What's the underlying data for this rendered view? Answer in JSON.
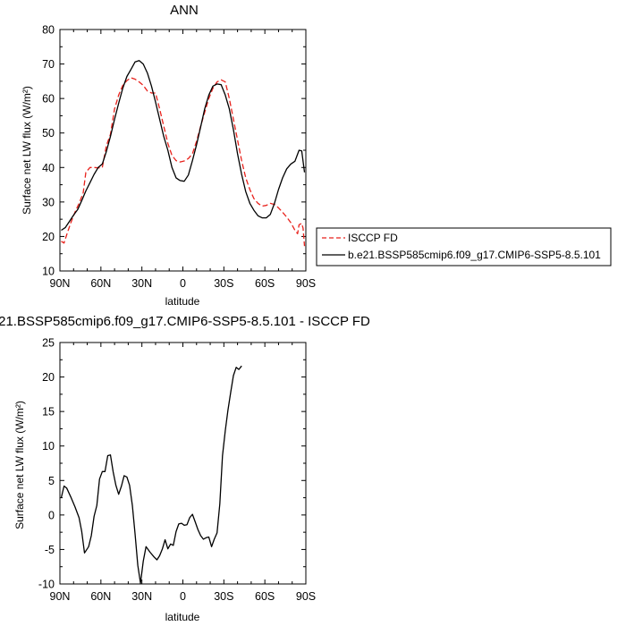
{
  "chart_data": [
    {
      "type": "line",
      "title": "ANN",
      "xlabel": "latitude",
      "ylabel": "Surface net LW flux (W/m²)",
      "xlim": [
        90,
        -90
      ],
      "ylim": [
        10,
        80
      ],
      "x_ticks": [
        90,
        60,
        30,
        0,
        -30,
        -60,
        -90
      ],
      "x_tick_labels": [
        "90N",
        "60N",
        "30N",
        "0",
        "30S",
        "60S",
        "90S"
      ],
      "y_ticks": [
        10,
        20,
        30,
        40,
        50,
        60,
        70,
        80
      ],
      "y_tick_labels": [
        "10",
        "20",
        "30",
        "40",
        "50",
        "60",
        "70",
        "80"
      ],
      "legend_position": "right-outside",
      "series": [
        {
          "name": "ISCCP FD",
          "color": "#e8221c",
          "style": "dashed",
          "points": [
            [
              89,
              18.6
            ],
            [
              87,
              18.1
            ],
            [
              85,
              20.5
            ],
            [
              82,
              24
            ],
            [
              79,
              27
            ],
            [
              76,
              29.6
            ],
            [
              73,
              32.6
            ],
            [
              71,
              38.6
            ],
            [
              68,
              40
            ],
            [
              65,
              40
            ],
            [
              62,
              39.9
            ],
            [
              59,
              40
            ],
            [
              56,
              46.3
            ],
            [
              53,
              49.6
            ],
            [
              50,
              57
            ],
            [
              47,
              61
            ],
            [
              44,
              63.8
            ],
            [
              41,
              65.2
            ],
            [
              38,
              66
            ],
            [
              35,
              65.6
            ],
            [
              32,
              64.8
            ],
            [
              29,
              63.8
            ],
            [
              26,
              62.2
            ],
            [
              23,
              61.6
            ],
            [
              20,
              61.6
            ],
            [
              17,
              57
            ],
            [
              14,
              52
            ],
            [
              11,
              47
            ],
            [
              8,
              43.5
            ],
            [
              5,
              42
            ],
            [
              2,
              41.6
            ],
            [
              -1,
              41.9
            ],
            [
              -4,
              42.6
            ],
            [
              -7,
              44
            ],
            [
              -10,
              47.6
            ],
            [
              -13,
              52
            ],
            [
              -16,
              56
            ],
            [
              -19,
              60
            ],
            [
              -22,
              63
            ],
            [
              -25,
              64.8
            ],
            [
              -28,
              65.4
            ],
            [
              -31,
              64.8
            ],
            [
              -34,
              60
            ],
            [
              -37,
              54
            ],
            [
              -40,
              48
            ],
            [
              -43,
              42
            ],
            [
              -46,
              37
            ],
            [
              -49,
              33.6
            ],
            [
              -52,
              31
            ],
            [
              -55,
              29.6
            ],
            [
              -58,
              28.8
            ],
            [
              -61,
              29
            ],
            [
              -64,
              29.6
            ],
            [
              -67,
              29.3
            ],
            [
              -70,
              28.3
            ],
            [
              -73,
              27
            ],
            [
              -76,
              25.6
            ],
            [
              -79,
              24
            ],
            [
              -82,
              21.8
            ],
            [
              -84,
              20.8
            ],
            [
              -85,
              23.4
            ],
            [
              -87,
              23.8
            ],
            [
              -88,
              22.4
            ],
            [
              -89,
              17.2
            ]
          ]
        },
        {
          "name": "b.e21.BSSP585cmip6.f09_g17.CMIP6-SSP5-8.5.101",
          "color": "#000000",
          "style": "solid",
          "points": [
            [
              89,
              21.8
            ],
            [
              86,
              22.6
            ],
            [
              83,
              24.4
            ],
            [
              80,
              26.2
            ],
            [
              77,
              27.8
            ],
            [
              74,
              30.4
            ],
            [
              71,
              33.2
            ],
            [
              68,
              35.6
            ],
            [
              65,
              38
            ],
            [
              62,
              40
            ],
            [
              59,
              41
            ],
            [
              56,
              44.6
            ],
            [
              53,
              49
            ],
            [
              50,
              54
            ],
            [
              47,
              58.6
            ],
            [
              44,
              63
            ],
            [
              41,
              66.4
            ],
            [
              38,
              68.4
            ],
            [
              35,
              70.6
            ],
            [
              32,
              71
            ],
            [
              29,
              70
            ],
            [
              26,
              67.4
            ],
            [
              23,
              63.6
            ],
            [
              20,
              59
            ],
            [
              17,
              54
            ],
            [
              14,
              49
            ],
            [
              11,
              45
            ],
            [
              8,
              40
            ],
            [
              5,
              37
            ],
            [
              2,
              36.2
            ],
            [
              -1,
              36
            ],
            [
              -4,
              37.8
            ],
            [
              -7,
              42
            ],
            [
              -10,
              46.6
            ],
            [
              -13,
              51.8
            ],
            [
              -16,
              57
            ],
            [
              -19,
              61
            ],
            [
              -22,
              63.6
            ],
            [
              -25,
              64.2
            ],
            [
              -28,
              64
            ],
            [
              -31,
              61
            ],
            [
              -34,
              57
            ],
            [
              -37,
              51
            ],
            [
              -40,
              44
            ],
            [
              -43,
              38
            ],
            [
              -46,
              33
            ],
            [
              -49,
              29.6
            ],
            [
              -52,
              27.6
            ],
            [
              -55,
              26
            ],
            [
              -58,
              25.4
            ],
            [
              -61,
              25.4
            ],
            [
              -64,
              26.4
            ],
            [
              -67,
              29.6
            ],
            [
              -70,
              33.6
            ],
            [
              -73,
              37
            ],
            [
              -76,
              39.6
            ],
            [
              -79,
              41
            ],
            [
              -82,
              41.8
            ],
            [
              -85,
              45
            ],
            [
              -87,
              44.8
            ],
            [
              -89,
              38.6
            ]
          ]
        }
      ]
    },
    {
      "type": "line",
      "title": "21.BSSP585cmip6.f09_g17.CMIP6-SSP5-8.5.101 - ISCCP FD",
      "xlabel": "latitude",
      "ylabel": "Surface net LW flux (W/m²)",
      "xlim": [
        90,
        -90
      ],
      "ylim": [
        -10,
        25
      ],
      "x_ticks": [
        90,
        60,
        30,
        0,
        -30,
        -60,
        -90
      ],
      "x_tick_labels": [
        "90N",
        "60N",
        "30N",
        "0",
        "30S",
        "60S",
        "90S"
      ],
      "y_ticks": [
        -10,
        -5,
        0,
        5,
        10,
        15,
        20,
        25
      ],
      "y_tick_labels": [
        "-10",
        "-5",
        "0",
        "5",
        "10",
        "15",
        "20",
        "25"
      ],
      "series": [
        {
          "color": "#000000",
          "style": "solid",
          "points": [
            [
              89,
              2.5
            ],
            [
              87,
              4.2
            ],
            [
              85,
              3.9
            ],
            [
              82,
              2.6
            ],
            [
              79,
              1.2
            ],
            [
              76,
              -0.4
            ],
            [
              74,
              -2.4
            ],
            [
              72,
              -5.5
            ],
            [
              69,
              -4.6
            ],
            [
              67,
              -3.0
            ],
            [
              65,
              -0.2
            ],
            [
              63,
              1.4
            ],
            [
              61,
              5.2
            ],
            [
              59,
              6.3
            ],
            [
              57,
              6.3
            ],
            [
              55,
              8.6
            ],
            [
              53,
              8.7
            ],
            [
              51,
              6.2
            ],
            [
              49,
              4.3
            ],
            [
              47,
              3.0
            ],
            [
              45,
              4.2
            ],
            [
              43,
              5.7
            ],
            [
              41,
              5.5
            ],
            [
              39,
              4.3
            ],
            [
              37,
              1.4
            ],
            [
              35,
              -2.7
            ],
            [
              33,
              -7.3
            ],
            [
              31,
              -9.9
            ],
            [
              29,
              -6.7
            ],
            [
              27,
              -4.6
            ],
            [
              24,
              -5.4
            ],
            [
              21,
              -6.1
            ],
            [
              19,
              -6.5
            ],
            [
              17,
              -5.9
            ],
            [
              15,
              -4.9
            ],
            [
              13,
              -3.6
            ],
            [
              11,
              -4.9
            ],
            [
              9,
              -4.2
            ],
            [
              7,
              -4.4
            ],
            [
              5,
              -2.4
            ],
            [
              3,
              -1.3
            ],
            [
              1,
              -1.2
            ],
            [
              -1,
              -1.5
            ],
            [
              -3,
              -1.4
            ],
            [
              -5,
              -0.4
            ],
            [
              -7,
              0.1
            ],
            [
              -9,
              -1.0
            ],
            [
              -11,
              -2.1
            ],
            [
              -13,
              -3.0
            ],
            [
              -15,
              -3.5
            ],
            [
              -17,
              -3.3
            ],
            [
              -19,
              -3.2
            ],
            [
              -21,
              -4.6
            ],
            [
              -23,
              -3.5
            ],
            [
              -25,
              -2.6
            ],
            [
              -27,
              1.6
            ],
            [
              -29,
              8.6
            ],
            [
              -31,
              12.2
            ],
            [
              -33,
              15.2
            ],
            [
              -35,
              17.8
            ],
            [
              -37,
              20.2
            ],
            [
              -39,
              21.4
            ],
            [
              -41,
              21.1
            ],
            [
              -43,
              21.6
            ]
          ]
        }
      ]
    }
  ],
  "legend": {
    "items": [
      {
        "label": "ISCCP FD",
        "color": "#e8221c",
        "style": "dashed"
      },
      {
        "label": "b.e21.BSSP585cmip6.f09_g17.CMIP6-SSP5-8.5.101",
        "color": "#000000",
        "style": "solid"
      }
    ]
  }
}
